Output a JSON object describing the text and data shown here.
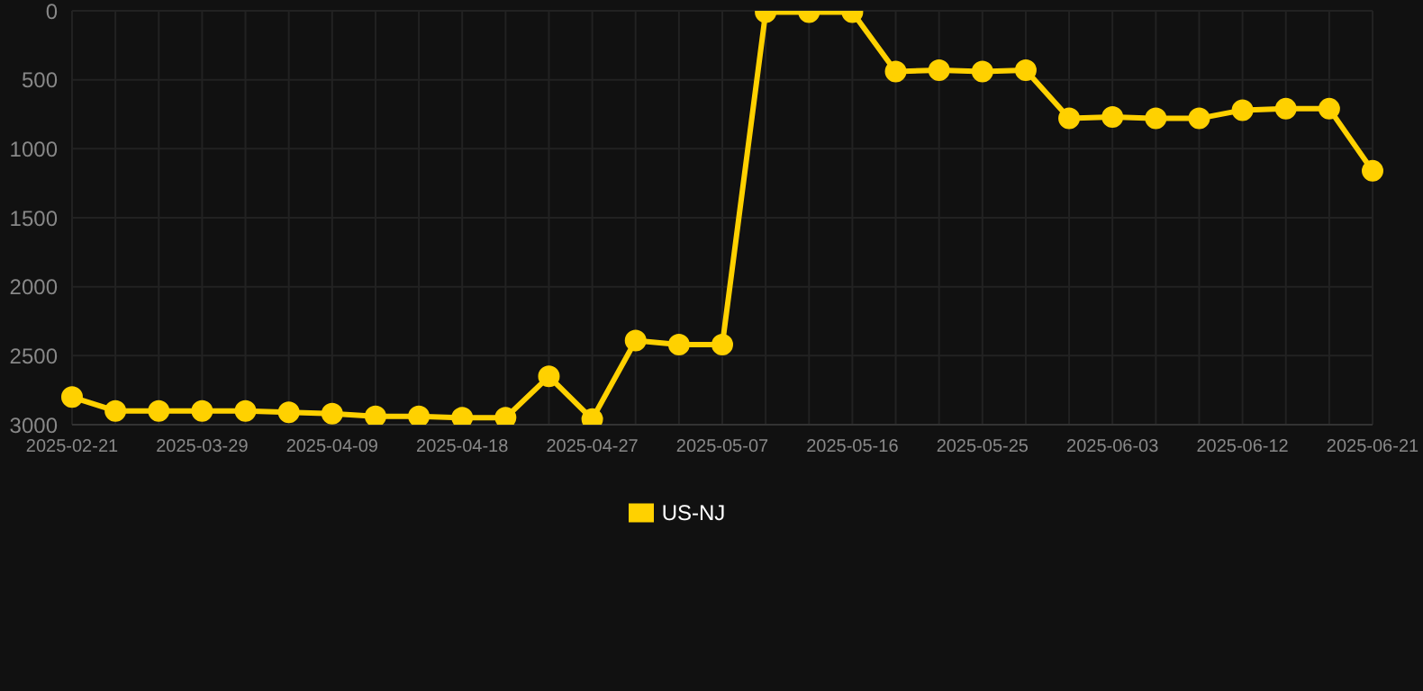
{
  "chart_data": {
    "type": "line",
    "categories": [
      "2025-02-21",
      null,
      null,
      "2025-03-29",
      null,
      null,
      "2025-04-09",
      null,
      null,
      "2025-04-18",
      null,
      null,
      "2025-04-27",
      null,
      null,
      "2025-05-07",
      null,
      null,
      "2025-05-16",
      null,
      null,
      "2025-05-25",
      null,
      null,
      "2025-06-03",
      null,
      null,
      "2025-06-12",
      null,
      null,
      "2025-06-21"
    ],
    "series": [
      {
        "name": "US-NJ",
        "color": "#ffd100",
        "values": [
          2800,
          2900,
          2900,
          2900,
          2900,
          2910,
          2920,
          2940,
          2940,
          2950,
          2950,
          2650,
          2960,
          2390,
          2420,
          2420,
          10,
          10,
          10,
          440,
          430,
          440,
          430,
          780,
          770,
          780,
          780,
          720,
          710,
          710,
          1160
        ]
      }
    ],
    "ylim": [
      3000,
      0
    ],
    "yticks": [
      0,
      500,
      1000,
      1500,
      2000,
      2500,
      3000
    ],
    "grid": true,
    "legend": "bottom",
    "marker": "circle",
    "line_style": "solid"
  }
}
